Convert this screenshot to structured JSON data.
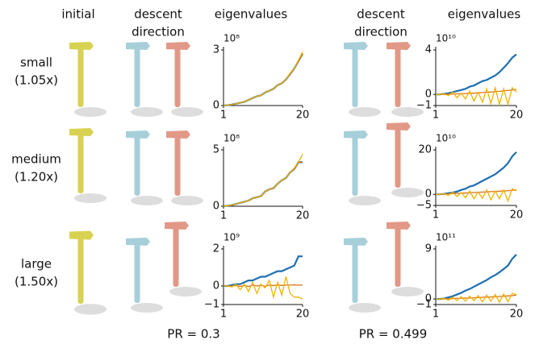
{
  "headers": [
    "initial",
    "descent",
    "direction",
    "eigenvalues",
    "descent",
    "direction",
    "eigenvalues"
  ],
  "rows": [
    {
      "name": "small",
      "factor": "(1.05x)"
    },
    {
      "name": "medium",
      "factor": "(1.20x)"
    },
    {
      "name": "large",
      "factor": "(1.50x)"
    }
  ],
  "footers": [
    "PR = 0.3",
    "PR = 0.499"
  ],
  "chart_data": [
    {
      "type": "line",
      "scale_label": "10⁸",
      "x": [
        1,
        2,
        3,
        4,
        5,
        6,
        7,
        8,
        9,
        10,
        11,
        12,
        13,
        14,
        15,
        16,
        17,
        18,
        19,
        20
      ],
      "xlim": [
        1,
        20
      ],
      "xticks": [
        1,
        20
      ],
      "ylim": [
        0,
        3
      ],
      "yticks": [
        0,
        3
      ],
      "series": [
        {
          "color": "#1f6fb2",
          "values": [
            0,
            0.02,
            0.05,
            0.1,
            0.15,
            0.2,
            0.3,
            0.4,
            0.5,
            0.55,
            0.7,
            0.8,
            0.9,
            1.1,
            1.2,
            1.4,
            1.7,
            2.0,
            2.4,
            2.8
          ]
        },
        {
          "color": "#d9731a",
          "values": [
            0,
            0.02,
            0.05,
            0.1,
            0.15,
            0.2,
            0.3,
            0.4,
            0.5,
            0.55,
            0.7,
            0.8,
            0.9,
            1.1,
            1.2,
            1.4,
            1.7,
            2.0,
            2.4,
            2.8
          ]
        },
        {
          "color": "#f0b400",
          "values": [
            0,
            0.02,
            0.05,
            0.1,
            0.15,
            0.2,
            0.3,
            0.4,
            0.5,
            0.55,
            0.7,
            0.8,
            0.9,
            1.1,
            1.2,
            1.4,
            1.75,
            2.0,
            2.45,
            2.9
          ]
        }
      ]
    },
    {
      "type": "line",
      "scale_label": "10⁸",
      "x": [
        1,
        2,
        3,
        4,
        5,
        6,
        7,
        8,
        9,
        10,
        11,
        12,
        13,
        14,
        15,
        16,
        17,
        18,
        19,
        20
      ],
      "xlim": [
        1,
        20
      ],
      "xticks": [
        1,
        20
      ],
      "ylim": [
        0,
        5
      ],
      "yticks": [
        0,
        5
      ],
      "series": [
        {
          "color": "#1f6fb2",
          "values": [
            0,
            0.05,
            0.1,
            0.2,
            0.3,
            0.4,
            0.5,
            0.7,
            0.8,
            0.9,
            1.3,
            1.5,
            1.6,
            2.0,
            2.3,
            2.5,
            3.0,
            3.3,
            3.9,
            3.9
          ]
        },
        {
          "color": "#d9731a",
          "values": [
            0,
            0.05,
            0.1,
            0.2,
            0.3,
            0.4,
            0.5,
            0.7,
            0.8,
            0.9,
            1.3,
            1.5,
            1.6,
            2.0,
            2.3,
            2.5,
            3.0,
            3.3,
            3.9,
            3.9
          ]
        },
        {
          "color": "#f0b400",
          "values": [
            0,
            0.05,
            0.1,
            0.2,
            0.3,
            0.4,
            0.5,
            0.7,
            0.8,
            0.9,
            1.3,
            1.5,
            1.6,
            2.0,
            2.3,
            2.5,
            3.0,
            3.4,
            3.9,
            4.6
          ]
        }
      ]
    },
    {
      "type": "line",
      "scale_label": "10⁹",
      "x": [
        1,
        2,
        3,
        4,
        5,
        6,
        7,
        8,
        9,
        10,
        11,
        12,
        13,
        14,
        15,
        16,
        17,
        18,
        19,
        20
      ],
      "xlim": [
        1,
        20
      ],
      "xticks": [
        1,
        20
      ],
      "ylim": [
        -1,
        2
      ],
      "yticks": [
        {
          "value": -1,
          "label": "−1"
        },
        0,
        2
      ],
      "series": [
        {
          "color": "#1f6fb2",
          "values": [
            0,
            0,
            0.05,
            0.1,
            0.1,
            0.2,
            0.3,
            0.3,
            0.4,
            0.5,
            0.5,
            0.6,
            0.7,
            0.8,
            0.8,
            0.9,
            1.0,
            1.1,
            1.6,
            1.6
          ]
        },
        {
          "color": "#d9731a",
          "values": [
            0,
            0,
            0,
            0.02,
            -0.02,
            0.03,
            -0.03,
            0.05,
            0,
            0.04,
            -0.02,
            0.05,
            0.02,
            0.06,
            0.03,
            0.05,
            0.05,
            0.06,
            0.05,
            0.05
          ]
        },
        {
          "color": "#f0b400",
          "values": [
            0,
            0,
            -0.05,
            0.1,
            -0.2,
            0.1,
            -0.3,
            0.2,
            -0.4,
            0.1,
            -0.1,
            0.3,
            -0.6,
            0.2,
            -0.5,
            0.5,
            -0.4,
            -0.6,
            -0.6,
            -0.7
          ]
        }
      ]
    },
    {
      "type": "line",
      "scale_label": "10¹⁰",
      "x": [
        1,
        2,
        3,
        4,
        5,
        6,
        7,
        8,
        9,
        10,
        11,
        12,
        13,
        14,
        15,
        16,
        17,
        18,
        19,
        20
      ],
      "xlim": [
        1,
        20
      ],
      "xticks": [
        1,
        20
      ],
      "ylim": [
        -1,
        4
      ],
      "yticks": [
        {
          "value": -1,
          "label": "−1"
        },
        0,
        4
      ],
      "series": [
        {
          "color": "#1f6fb2",
          "values": [
            0,
            0,
            0.05,
            0.1,
            0.2,
            0.3,
            0.4,
            0.5,
            0.7,
            0.8,
            1.0,
            1.2,
            1.3,
            1.5,
            1.7,
            2.0,
            2.4,
            2.8,
            3.3,
            3.6
          ]
        },
        {
          "color": "#d9731a",
          "values": [
            0,
            0,
            0,
            0.02,
            0.03,
            0.05,
            0.07,
            0.08,
            0.1,
            0.12,
            0.15,
            0.17,
            0.2,
            0.22,
            0.25,
            0.28,
            0.32,
            0.36,
            0.4,
            0.45
          ]
        },
        {
          "color": "#f0b400",
          "values": [
            0,
            0,
            0.05,
            -0.1,
            0.2,
            -0.3,
            0.1,
            -0.4,
            0.3,
            -0.6,
            0.2,
            -0.7,
            0.5,
            -0.8,
            0.6,
            -0.9,
            0.5,
            -0.9,
            0.6,
            0.2
          ]
        }
      ]
    },
    {
      "type": "line",
      "scale_label": "10¹⁰",
      "x": [
        1,
        2,
        3,
        4,
        5,
        6,
        7,
        8,
        9,
        10,
        11,
        12,
        13,
        14,
        15,
        16,
        17,
        18,
        19,
        20
      ],
      "xlim": [
        1,
        20
      ],
      "xticks": [
        1,
        20
      ],
      "ylim": [
        -5,
        20
      ],
      "yticks": [
        {
          "value": -5,
          "label": "−5"
        },
        0,
        20
      ],
      "series": [
        {
          "color": "#1f6fb2",
          "values": [
            0,
            0,
            0.2,
            0.5,
            0.8,
            1.2,
            2,
            2.5,
            3.5,
            4,
            5,
            6,
            7,
            8,
            9,
            10.5,
            12,
            14,
            17,
            19
          ]
        },
        {
          "color": "#d9731a",
          "values": [
            0,
            0,
            0.1,
            0.2,
            0.3,
            0.4,
            0.5,
            0.6,
            0.7,
            0.8,
            0.9,
            1,
            1.1,
            1.2,
            1.3,
            1.4,
            1.5,
            1.6,
            1.8,
            2
          ]
        },
        {
          "color": "#f0b400",
          "values": [
            0,
            0,
            0.3,
            -0.5,
            1,
            -1,
            0.8,
            -1.5,
            1.5,
            -2,
            1,
            -1.8,
            2,
            -2.5,
            1.5,
            -2,
            2,
            -3,
            2.5,
            1.5
          ]
        }
      ]
    },
    {
      "type": "line",
      "scale_label": "10¹¹",
      "x": [
        1,
        2,
        3,
        4,
        5,
        6,
        7,
        8,
        9,
        10,
        11,
        12,
        13,
        14,
        15,
        16,
        17,
        18,
        19,
        20
      ],
      "xlim": [
        1,
        20
      ],
      "xticks": [
        1,
        20
      ],
      "ylim": [
        -1,
        9
      ],
      "yticks": [
        {
          "value": -1,
          "label": "−1"
        },
        0,
        9
      ],
      "series": [
        {
          "color": "#1f6fb2",
          "values": [
            0,
            0,
            0.1,
            0.3,
            0.5,
            0.8,
            1.1,
            1.5,
            1.8,
            2.2,
            2.6,
            3,
            3.4,
            3.9,
            4.3,
            4.8,
            5.4,
            6,
            7.2,
            8
          ]
        },
        {
          "color": "#d9731a",
          "values": [
            0,
            0,
            0,
            0.05,
            0.08,
            0.1,
            0.12,
            0.15,
            0.18,
            0.2,
            0.25,
            0.3,
            0.33,
            0.36,
            0.4,
            0.45,
            0.5,
            0.55,
            0.6,
            0.7
          ]
        },
        {
          "color": "#f0b400",
          "values": [
            0,
            0,
            0.1,
            -0.2,
            0.3,
            -0.3,
            0.4,
            -0.4,
            0.5,
            -0.3,
            0.6,
            -0.5,
            0.7,
            -0.4,
            0.8,
            -0.6,
            0.9,
            -0.5,
            1,
            0.8
          ]
        }
      ]
    }
  ]
}
